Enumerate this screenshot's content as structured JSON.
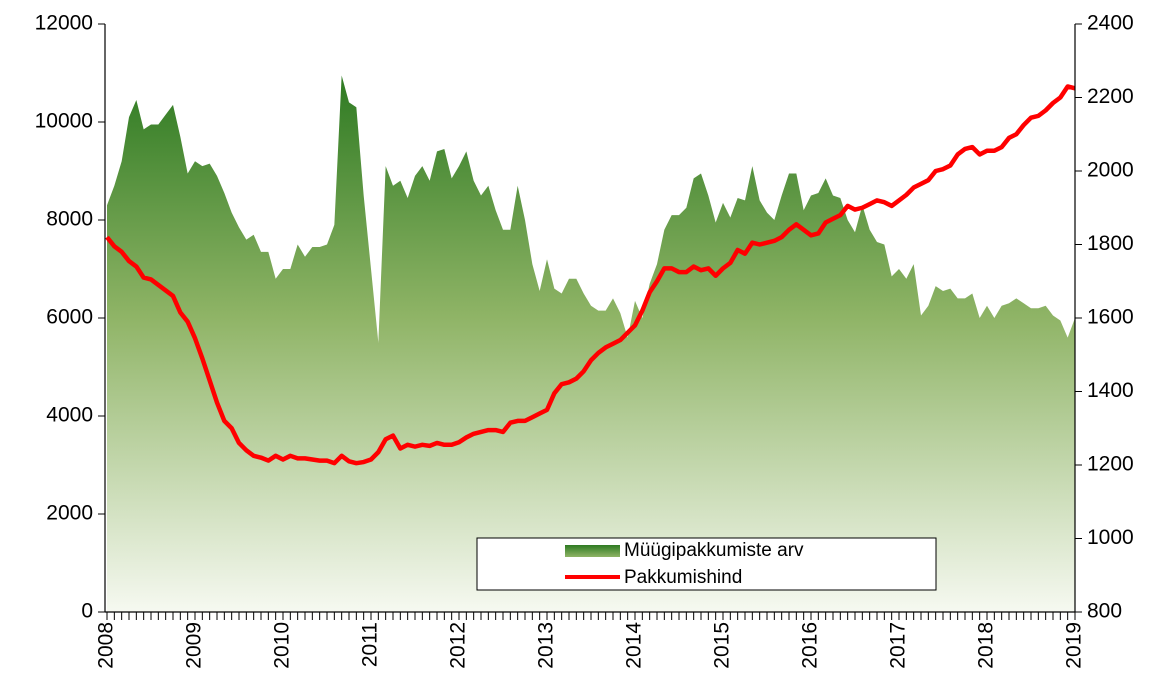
{
  "chart_data": {
    "type": "line",
    "categories": [
      "2008",
      null,
      null,
      null,
      null,
      null,
      null,
      null,
      null,
      null,
      null,
      null,
      "2009",
      null,
      null,
      null,
      null,
      null,
      null,
      null,
      null,
      null,
      null,
      null,
      "2010",
      null,
      null,
      null,
      null,
      null,
      null,
      null,
      null,
      null,
      null,
      null,
      "2011",
      null,
      null,
      null,
      null,
      null,
      null,
      null,
      null,
      null,
      null,
      null,
      "2012",
      null,
      null,
      null,
      null,
      null,
      null,
      null,
      null,
      null,
      null,
      null,
      "2013",
      null,
      null,
      null,
      null,
      null,
      null,
      null,
      null,
      null,
      null,
      null,
      "2014",
      null,
      null,
      null,
      null,
      null,
      null,
      null,
      null,
      null,
      null,
      null,
      "2015",
      null,
      null,
      null,
      null,
      null,
      null,
      null,
      null,
      null,
      null,
      null,
      "2016",
      null,
      null,
      null,
      null,
      null,
      null,
      null,
      null,
      null,
      null,
      null,
      "2017",
      null,
      null,
      null,
      null,
      null,
      null,
      null,
      null,
      null,
      null,
      null,
      "2018",
      null,
      null,
      null,
      null,
      null,
      null,
      null,
      null,
      null,
      null,
      null,
      "2019"
    ],
    "series": [
      {
        "name": "Müügipakkumiste arv",
        "type": "area",
        "color": "#2e7a22",
        "values": [
          8300,
          8700,
          9200,
          10100,
          10450,
          9850,
          9950,
          9950,
          10150,
          10350,
          9700,
          8950,
          9200,
          9100,
          9150,
          8900,
          8550,
          8150,
          7850,
          7600,
          7700,
          7350,
          7350,
          6800,
          7000,
          7000,
          7500,
          7250,
          7450,
          7450,
          7500,
          7900,
          10950,
          10400,
          10300,
          8500,
          7000,
          5500,
          9100,
          8700,
          8800,
          8450,
          8900,
          9100,
          8800,
          9400,
          9450,
          8850,
          9100,
          9400,
          8800,
          8500,
          8700,
          8200,
          7800,
          7800,
          8700,
          8000,
          7100,
          6550,
          7200,
          6600,
          6500,
          6800,
          6800,
          6500,
          6250,
          6150,
          6150,
          6400,
          6100,
          5600,
          6350,
          6000,
          6700,
          7100,
          7800,
          8100,
          8100,
          8250,
          8850,
          8950,
          8500,
          7950,
          8350,
          8050,
          8450,
          8400,
          9100,
          8400,
          8150,
          8000,
          8500,
          8950,
          8950,
          8200,
          8500,
          8550,
          8850,
          8500,
          8450,
          8000,
          7750,
          8300,
          7800,
          7550,
          7500,
          6850,
          7000,
          6800,
          7100,
          6050,
          6250,
          6650,
          6550,
          6600,
          6400,
          6400,
          6500,
          6000,
          6250,
          6000,
          6250,
          6300,
          6400,
          6300,
          6200,
          6200,
          6250,
          6050,
          5950,
          5600,
          6000
        ]
      },
      {
        "name": "Pakkumishind",
        "type": "line",
        "color": "#ff0000",
        "axis": "y2",
        "values": [
          1820,
          1795,
          1780,
          1755,
          1740,
          1710,
          1705,
          1690,
          1675,
          1660,
          1615,
          1590,
          1545,
          1490,
          1430,
          1370,
          1320,
          1300,
          1260,
          1240,
          1225,
          1220,
          1212,
          1225,
          1215,
          1225,
          1218,
          1218,
          1215,
          1212,
          1212,
          1205,
          1225,
          1210,
          1205,
          1208,
          1215,
          1235,
          1270,
          1280,
          1245,
          1255,
          1250,
          1255,
          1252,
          1260,
          1255,
          1255,
          1262,
          1275,
          1285,
          1290,
          1295,
          1295,
          1290,
          1315,
          1320,
          1320,
          1330,
          1340,
          1350,
          1395,
          1420,
          1425,
          1435,
          1455,
          1485,
          1505,
          1520,
          1530,
          1540,
          1560,
          1580,
          1620,
          1670,
          1700,
          1735,
          1735,
          1725,
          1725,
          1740,
          1730,
          1735,
          1715,
          1735,
          1750,
          1785,
          1775,
          1805,
          1800,
          1805,
          1810,
          1820,
          1840,
          1855,
          1840,
          1825,
          1830,
          1860,
          1870,
          1880,
          1905,
          1895,
          1900,
          1910,
          1920,
          1915,
          1905,
          1920,
          1935,
          1955,
          1965,
          1975,
          2000,
          2005,
          2015,
          2045,
          2060,
          2065,
          2045,
          2055,
          2055,
          2065,
          2090,
          2100,
          2125,
          2145,
          2150,
          2165,
          2185,
          2200,
          2230,
          2225
        ]
      }
    ],
    "ylim": [
      0,
      12000
    ],
    "yticks": [
      0,
      2000,
      4000,
      6000,
      8000,
      10000,
      12000
    ],
    "y2lim": [
      800,
      2400
    ],
    "y2ticks": [
      800,
      1000,
      1200,
      1400,
      1600,
      1800,
      2000,
      2200,
      2400
    ]
  }
}
